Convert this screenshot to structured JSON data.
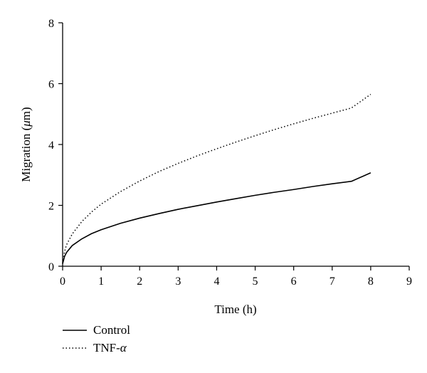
{
  "chart_data": {
    "type": "line",
    "xlabel": "Time (h)",
    "ylabel_main": "Migration (",
    "ylabel_mu": "μ",
    "ylabel_tail": "m)",
    "xlim": [
      0,
      9
    ],
    "ylim": [
      0,
      8
    ],
    "xticks": [
      "0",
      "1",
      "2",
      "3",
      "4",
      "5",
      "6",
      "7",
      "8",
      "9"
    ],
    "yticks": [
      "0",
      "2",
      "4",
      "6",
      "8"
    ],
    "grid": false,
    "legend_position": "bottom-left",
    "series": [
      {
        "name": "Control",
        "style": "solid",
        "color": "#000000",
        "x": [
          0,
          0.05,
          0.1,
          0.25,
          0.5,
          0.75,
          1,
          1.5,
          2,
          2.5,
          3,
          3.5,
          4,
          4.5,
          5,
          5.5,
          6,
          6.5,
          7,
          7.5,
          8
        ],
        "y": [
          0.08,
          0.32,
          0.45,
          0.68,
          0.9,
          1.07,
          1.2,
          1.41,
          1.58,
          1.73,
          1.87,
          1.99,
          2.11,
          2.22,
          2.33,
          2.43,
          2.52,
          2.62,
          2.71,
          2.79,
          3.07
        ]
      },
      {
        "name": "TNF-",
        "name_suffix": "α",
        "style": "dotted",
        "color": "#000000",
        "x": [
          0,
          0.05,
          0.1,
          0.25,
          0.5,
          0.75,
          1,
          1.5,
          2,
          2.5,
          3,
          3.5,
          4,
          4.5,
          5,
          5.5,
          6,
          6.5,
          7,
          7.5,
          8
        ],
        "y": [
          0.1,
          0.48,
          0.7,
          1.06,
          1.47,
          1.78,
          2.04,
          2.45,
          2.8,
          3.11,
          3.38,
          3.63,
          3.86,
          4.08,
          4.29,
          4.49,
          4.68,
          4.86,
          5.03,
          5.2,
          5.65
        ]
      }
    ]
  }
}
